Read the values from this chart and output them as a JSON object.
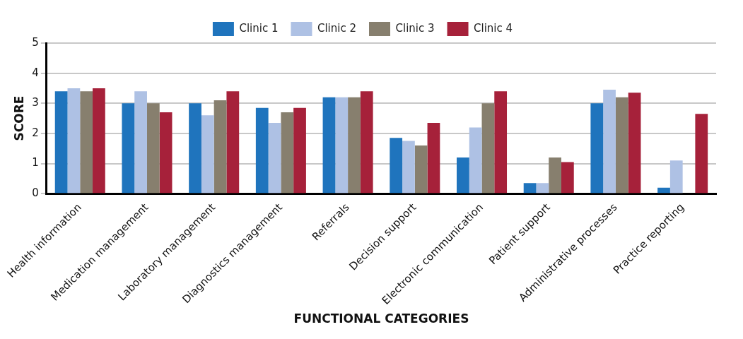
{
  "chart_data": {
    "type": "bar",
    "xlabel": "FUNCTIONAL CATEGORIES",
    "ylabel": "SCORE",
    "categories": [
      "Health information",
      "Medication management",
      "Laboratory management",
      "Diagnostics management",
      "Referrals",
      "Decision support",
      "Electronic communication",
      "Patient support",
      "Administrative processes",
      "Practice reporting"
    ],
    "series": [
      {
        "name": "Clinic 1",
        "color": "#1f74bd",
        "values": [
          3.4,
          3.0,
          3.0,
          2.85,
          3.2,
          1.85,
          1.2,
          0.35,
          3.0,
          0.2
        ]
      },
      {
        "name": "Clinic 2",
        "color": "#aec1e4",
        "values": [
          3.5,
          3.4,
          2.6,
          2.35,
          3.2,
          1.75,
          2.2,
          0.35,
          3.45,
          1.1
        ]
      },
      {
        "name": "Clinic 3",
        "color": "#877f6e",
        "values": [
          3.4,
          3.0,
          3.1,
          2.7,
          3.2,
          1.6,
          3.0,
          1.2,
          3.2,
          null
        ]
      },
      {
        "name": "Clinic 4",
        "color": "#a6213a",
        "values": [
          3.5,
          2.7,
          3.4,
          2.85,
          3.4,
          2.35,
          3.4,
          1.05,
          3.35,
          2.65
        ]
      }
    ],
    "ylim": [
      0,
      5
    ],
    "yticks": [
      0,
      1,
      2,
      3,
      4,
      5
    ],
    "grid": "y",
    "legend": "top"
  }
}
